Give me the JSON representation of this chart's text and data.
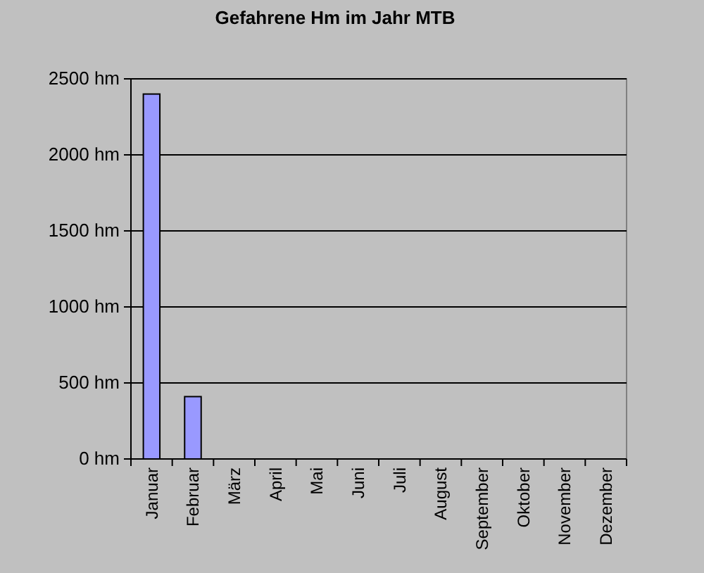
{
  "chart_data": {
    "type": "bar",
    "title": "Gefahrene Hm im Jahr MTB",
    "categories": [
      "Januar",
      "Februar",
      "März",
      "April",
      "Mai",
      "Juni",
      "Juli",
      "August",
      "September",
      "Oktober",
      "November",
      "Dezember"
    ],
    "values": [
      2400,
      410,
      0,
      0,
      0,
      0,
      0,
      0,
      0,
      0,
      0,
      0
    ],
    "color": "#9999ff",
    "ylim": [
      0,
      2500
    ],
    "yticks": [
      {
        "value": 0,
        "label": "0 hm"
      },
      {
        "value": 500,
        "label": "500 hm"
      },
      {
        "value": 1000,
        "label": "1000 hm"
      },
      {
        "value": 1500,
        "label": "1500 hm"
      },
      {
        "value": 2000,
        "label": "2000 hm"
      },
      {
        "value": 2500,
        "label": "2500 hm"
      }
    ],
    "grid": "y"
  }
}
